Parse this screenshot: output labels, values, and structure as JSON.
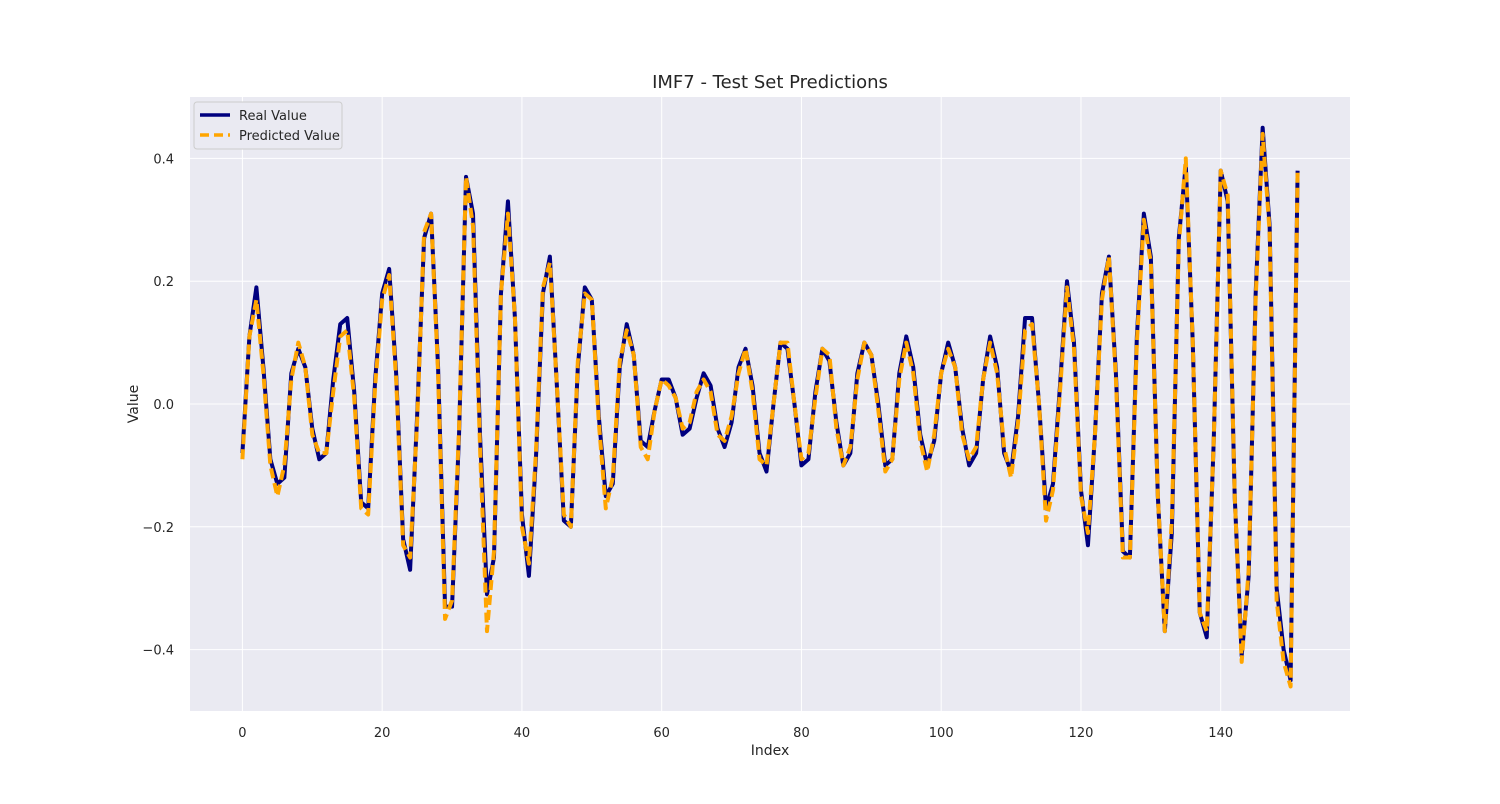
{
  "chart_data": {
    "type": "line",
    "title": "IMF7 - Test Set Predictions",
    "xlabel": "Index",
    "ylabel": "Value",
    "xlim": [
      -7.5,
      158.5
    ],
    "ylim": [
      -0.5,
      0.5
    ],
    "xticks": [
      0,
      20,
      40,
      60,
      80,
      100,
      120,
      140
    ],
    "yticks": [
      -0.4,
      -0.2,
      0.0,
      0.2,
      0.4
    ],
    "ytick_labels": [
      "−0.4",
      "−0.2",
      "0.0",
      "0.2",
      "0.4"
    ],
    "grid": true,
    "legend_position": "top-left",
    "background_color": "#eaeaf2",
    "series": [
      {
        "name": "Real Value",
        "color": "#00007f",
        "style": "solid",
        "values": [
          -0.08,
          0.11,
          0.19,
          0.06,
          -0.09,
          -0.13,
          -0.12,
          0.05,
          0.09,
          0.06,
          -0.04,
          -0.09,
          -0.08,
          0.04,
          0.13,
          0.14,
          0.02,
          -0.16,
          -0.17,
          0.04,
          0.18,
          0.22,
          0.05,
          -0.22,
          -0.27,
          -0.02,
          0.27,
          0.31,
          0.06,
          -0.33,
          -0.33,
          -0.05,
          0.37,
          0.31,
          -0.05,
          -0.31,
          -0.25,
          0.18,
          0.33,
          0.14,
          -0.18,
          -0.28,
          -0.09,
          0.18,
          0.24,
          0.03,
          -0.19,
          -0.2,
          0.06,
          0.19,
          0.17,
          -0.02,
          -0.15,
          -0.13,
          0.06,
          0.13,
          0.08,
          -0.06,
          -0.07,
          -0.01,
          0.04,
          0.04,
          0.01,
          -0.05,
          -0.04,
          0.01,
          0.05,
          0.03,
          -0.04,
          -0.07,
          -0.03,
          0.06,
          0.09,
          0.03,
          -0.08,
          -0.11,
          0.0,
          0.1,
          0.09,
          0.0,
          -0.1,
          -0.09,
          0.02,
          0.09,
          0.07,
          -0.03,
          -0.1,
          -0.08,
          0.05,
          0.1,
          0.08,
          0.0,
          -0.1,
          -0.09,
          0.05,
          0.11,
          0.06,
          -0.05,
          -0.1,
          -0.06,
          0.05,
          0.1,
          0.06,
          -0.04,
          -0.1,
          -0.08,
          0.04,
          0.11,
          0.06,
          -0.08,
          -0.11,
          -0.02,
          0.14,
          0.14,
          0.0,
          -0.17,
          -0.13,
          0.03,
          0.2,
          0.1,
          -0.14,
          -0.23,
          -0.05,
          0.18,
          0.24,
          0.05,
          -0.24,
          -0.25,
          0.11,
          0.31,
          0.24,
          -0.15,
          -0.37,
          -0.21,
          0.27,
          0.39,
          0.1,
          -0.34,
          -0.38,
          -0.06,
          0.38,
          0.33,
          -0.15,
          -0.41,
          -0.28,
          0.18,
          0.45,
          0.29,
          -0.3,
          -0.4,
          -0.45,
          0.38
        ]
      },
      {
        "name": "Predicted Value",
        "color": "#ffa500",
        "style": "dashed",
        "values": [
          -0.09,
          0.11,
          0.17,
          0.05,
          -0.1,
          -0.15,
          -0.1,
          0.04,
          0.1,
          0.06,
          -0.05,
          -0.08,
          -0.08,
          0.02,
          0.11,
          0.12,
          0.01,
          -0.17,
          -0.18,
          0.03,
          0.17,
          0.21,
          0.04,
          -0.23,
          -0.25,
          -0.03,
          0.28,
          0.31,
          0.05,
          -0.35,
          -0.32,
          -0.04,
          0.37,
          0.29,
          -0.07,
          -0.37,
          -0.24,
          0.18,
          0.31,
          0.14,
          -0.2,
          -0.26,
          -0.08,
          0.19,
          0.23,
          0.03,
          -0.18,
          -0.2,
          0.07,
          0.18,
          0.17,
          -0.03,
          -0.17,
          -0.12,
          0.07,
          0.12,
          0.08,
          -0.07,
          -0.09,
          -0.01,
          0.04,
          0.03,
          0.01,
          -0.04,
          -0.03,
          0.02,
          0.04,
          0.02,
          -0.05,
          -0.06,
          -0.02,
          0.05,
          0.09,
          0.02,
          -0.09,
          -0.1,
          0.0,
          0.1,
          0.1,
          0.0,
          -0.09,
          -0.08,
          0.01,
          0.09,
          0.08,
          -0.04,
          -0.1,
          -0.07,
          0.04,
          0.1,
          0.08,
          -0.01,
          -0.11,
          -0.09,
          0.04,
          0.1,
          0.05,
          -0.06,
          -0.11,
          -0.05,
          0.05,
          0.09,
          0.06,
          -0.05,
          -0.09,
          -0.07,
          0.04,
          0.1,
          0.05,
          -0.07,
          -0.12,
          -0.03,
          0.12,
          0.13,
          0.0,
          -0.19,
          -0.14,
          0.02,
          0.19,
          0.09,
          -0.15,
          -0.21,
          -0.05,
          0.17,
          0.24,
          0.04,
          -0.25,
          -0.25,
          0.1,
          0.3,
          0.23,
          -0.15,
          -0.37,
          -0.19,
          0.26,
          0.4,
          0.1,
          -0.34,
          -0.37,
          -0.06,
          0.38,
          0.34,
          -0.15,
          -0.42,
          -0.27,
          0.17,
          0.44,
          0.28,
          -0.32,
          -0.42,
          -0.46,
          0.38
        ]
      }
    ]
  }
}
